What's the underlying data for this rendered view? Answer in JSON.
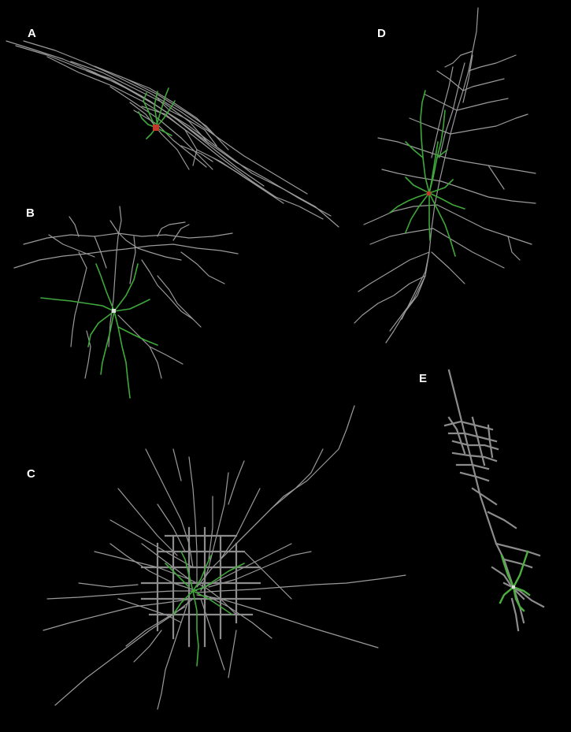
{
  "panels": [
    {
      "id": "A",
      "label": "A"
    },
    {
      "id": "B",
      "label": "B"
    },
    {
      "id": "C",
      "label": "C"
    },
    {
      "id": "D",
      "label": "D"
    },
    {
      "id": "E",
      "label": "E"
    }
  ],
  "colors": {
    "background": "#000000",
    "axon": "#9a9a9a",
    "dendrite": "#3fa83a",
    "soma": "#c0392b",
    "label": "#ffffff"
  }
}
